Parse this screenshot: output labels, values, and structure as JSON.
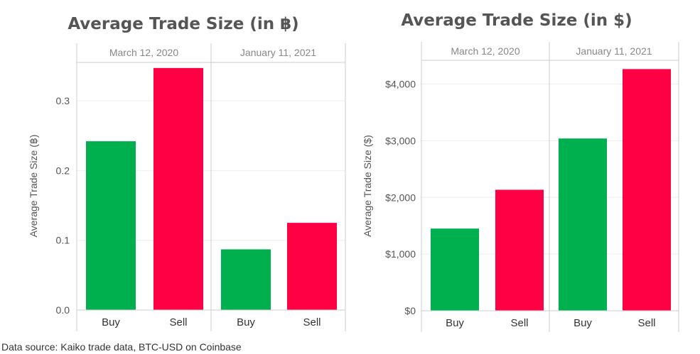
{
  "colors": {
    "buy": "#00b04f",
    "sell": "#ff0044",
    "strip": "#e6e6e6",
    "grid": "#eeeeee",
    "border": "#cccccc"
  },
  "source": "Data source: Kaiko trade data, BTC-USD on Coinbase",
  "chart_data": [
    {
      "type": "bar",
      "title": "Average Trade Size (in ฿)",
      "ylabel": "Average Trade Size (฿)",
      "ylim": [
        0,
        0.355
      ],
      "yticks": [
        0.0,
        0.1,
        0.2,
        0.3
      ],
      "ytick_labels": [
        "0.0",
        "0.1",
        "0.2",
        "0.3"
      ],
      "facets": [
        "March 12, 2020",
        "January 11, 2021"
      ],
      "categories": [
        "Buy",
        "Sell"
      ],
      "values": [
        [
          0.242,
          0.347
        ],
        [
          0.087,
          0.125
        ]
      ],
      "grid": true
    },
    {
      "type": "bar",
      "title": "Average Trade Size (in $)",
      "ylabel": "Average Trade Size ($)",
      "ylim": [
        0,
        4420
      ],
      "yticks": [
        0,
        1000,
        2000,
        3000,
        4000
      ],
      "ytick_labels": [
        "$0",
        "$1,000",
        "$2,000",
        "$3,000",
        "$4,000"
      ],
      "facets": [
        "March 12, 2020",
        "January 11, 2021"
      ],
      "categories": [
        "Buy",
        "Sell"
      ],
      "values": [
        [
          1450,
          2135
        ],
        [
          3040,
          4265
        ]
      ],
      "grid": true
    }
  ]
}
